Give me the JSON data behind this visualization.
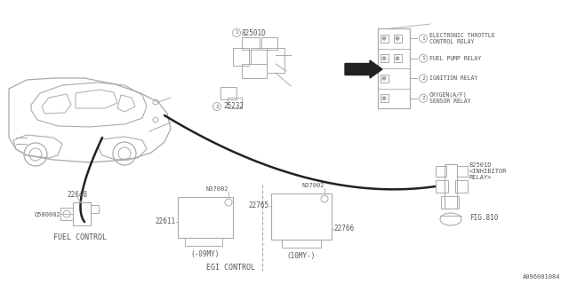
{
  "bg": "#ffffff",
  "lc": "#aaaaaa",
  "tc": "#555555",
  "blk": "#222222",
  "fig_w": 6.4,
  "fig_h": 3.2,
  "dpi": 100,
  "relay_items": [
    {
      "num": "1",
      "text": "ELECTRONIC THROTTLE\nCONTROL RELAY",
      "row": 0
    },
    {
      "num": "1",
      "text": "FUEL PUMP RELAY",
      "row": 1
    },
    {
      "num": "2",
      "text": "IGNITION RELAY",
      "row": 2
    },
    {
      "num": "2",
      "text": "OXYGEN(A/F)\nSENSOR RELAY",
      "row": 3
    }
  ],
  "parts": {
    "82501D_top": "82501D",
    "25232": "25232",
    "22648": "22648",
    "Q580002": "Q580002",
    "N37002_l": "N37002",
    "22611": "22611",
    "minus09": "(-09MY)",
    "22765": "22765",
    "N37002_r": "N37002",
    "22766": "22766",
    "plus10": "(10MY-)",
    "82501D_bot": "82501D\n<INHIBITOR\nRELAY>",
    "fig810": "FIG.810",
    "code": "A096001084",
    "fuel_ctrl": "FUEL CONTROL",
    "egi_ctrl": "EGI CONTROL"
  }
}
